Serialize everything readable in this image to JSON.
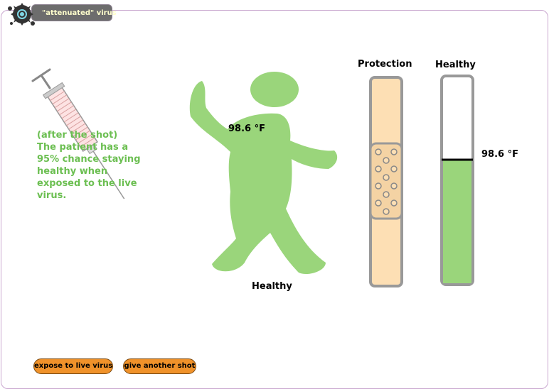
{
  "window": {
    "title": "\"attenuated\" virus"
  },
  "info": {
    "lines": [
      "(after the shot)",
      "The patient has a",
      "95% chance staying",
      "healthy when",
      "exposed to the live",
      "virus."
    ]
  },
  "patient": {
    "temperature": "98.6 °F",
    "status": "Healthy"
  },
  "meters": {
    "protection_label": "Protection",
    "healthy_label": "Healthy",
    "healthy_level": 0.6,
    "temperature": "98.6 °F"
  },
  "buttons": {
    "expose_label": "expose to live virus",
    "shot_label": "give another shot"
  },
  "colors": {
    "accent_green": "#9ad57b",
    "text_green": "#6cbf52",
    "protection_fill": "#fddfb4",
    "button": "#f0922a"
  }
}
